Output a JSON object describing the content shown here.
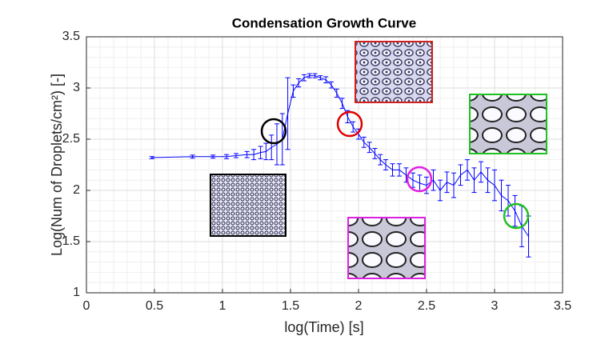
{
  "chart_data": {
    "type": "errorbar",
    "title": "Condensation Growth Curve",
    "x_label": "log(Time) [s]",
    "y_label": "Log(Num of Droplets/cm²) [-]",
    "x": [
      0.48,
      0.78,
      0.93,
      1.03,
      1.1,
      1.18,
      1.23,
      1.28,
      1.32,
      1.36,
      1.4,
      1.44,
      1.48,
      1.52,
      1.56,
      1.6,
      1.64,
      1.68,
      1.72,
      1.76,
      1.8,
      1.84,
      1.88,
      1.92,
      1.96,
      2.0,
      2.04,
      2.08,
      2.12,
      2.16,
      2.2,
      2.25,
      2.3,
      2.35,
      2.4,
      2.45,
      2.5,
      2.55,
      2.6,
      2.65,
      2.7,
      2.75,
      2.8,
      2.85,
      2.9,
      2.95,
      3.0,
      3.05,
      3.1,
      3.15,
      3.2,
      3.25
    ],
    "series": [
      {
        "color": "#0000ff",
        "values": [
          2.32,
          2.33,
          2.33,
          2.33,
          2.34,
          2.35,
          2.35,
          2.37,
          2.38,
          2.42,
          2.45,
          2.5,
          2.75,
          2.97,
          3.05,
          3.1,
          3.12,
          3.12,
          3.1,
          3.08,
          3.03,
          2.95,
          2.85,
          2.72,
          2.62,
          2.55,
          2.47,
          2.42,
          2.36,
          2.3,
          2.25,
          2.2,
          2.2,
          2.15,
          2.1,
          2.07,
          2.05,
          2.1,
          2.0,
          2.08,
          2.05,
          2.15,
          2.2,
          2.1,
          2.18,
          2.1,
          2.05,
          1.95,
          1.9,
          1.8,
          1.65,
          1.55
        ],
        "errors": [
          0.01,
          0.015,
          0.015,
          0.02,
          0.02,
          0.03,
          0.05,
          0.06,
          0.08,
          0.12,
          0.2,
          0.25,
          0.35,
          0.06,
          0.04,
          0.03,
          0.02,
          0.02,
          0.02,
          0.03,
          0.03,
          0.04,
          0.05,
          0.06,
          0.05,
          0.05,
          0.05,
          0.05,
          0.05,
          0.05,
          0.05,
          0.06,
          0.06,
          0.07,
          0.07,
          0.08,
          0.08,
          0.1,
          0.1,
          0.1,
          0.12,
          0.1,
          0.1,
          0.12,
          0.1,
          0.12,
          0.15,
          0.15,
          0.15,
          0.15,
          0.2,
          0.2
        ]
      }
    ],
    "xlim": [
      0,
      3.5
    ],
    "xticks": [
      0,
      0.5,
      1,
      1.5,
      2,
      2.5,
      3,
      3.5
    ],
    "ylim": [
      1,
      3.5
    ],
    "yticks": [
      1,
      1.5,
      2,
      2.5,
      3,
      3.5
    ],
    "grid": true,
    "minor_grid": true
  }
}
